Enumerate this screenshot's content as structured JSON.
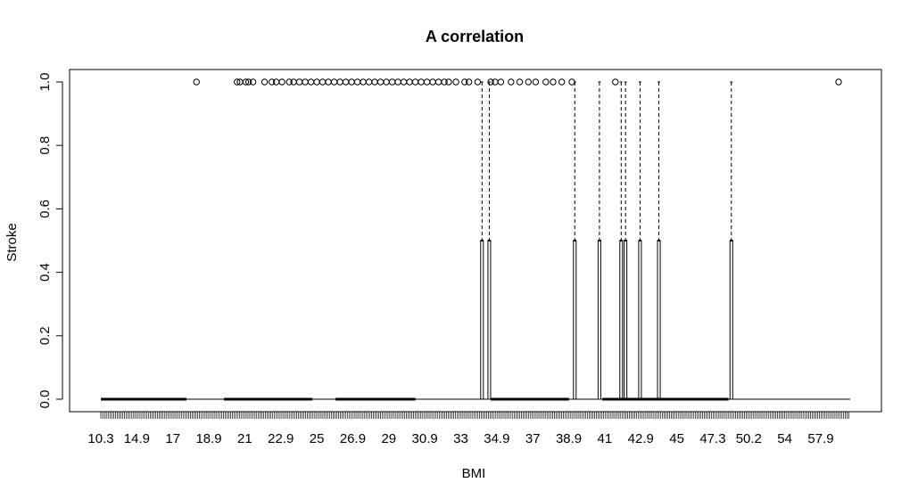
{
  "chart_data": {
    "type": "boxplot",
    "title": "A correlation",
    "xlabel": "BMI",
    "ylabel": "Stroke",
    "ylim": [
      0,
      1
    ],
    "y_ticks": [
      "0.0",
      "0.2",
      "0.4",
      "0.6",
      "0.8",
      "1.0"
    ],
    "x_tick_labels": [
      "10.3",
      "14.9",
      "17",
      "18.9",
      "21",
      "22.9",
      "25",
      "26.9",
      "29",
      "30.9",
      "33",
      "34.9",
      "37",
      "38.9",
      "41",
      "42.9",
      "45",
      "47.3",
      "50.2",
      "54",
      "57.9"
    ],
    "x_range": [
      10.3,
      62
    ],
    "boxes_spanning_0_to_1": [
      36.6,
      37.1,
      43.0,
      44.7,
      46.2,
      46.5,
      47.5,
      48.8,
      53.8
    ],
    "outliers_at_1": [
      16.9,
      19.7,
      19.9,
      20.3,
      20.5,
      20.8,
      21.6,
      22.1,
      22.4,
      22.8,
      23.3,
      23.6,
      24.0,
      24.4,
      24.8,
      25.2,
      25.6,
      26.0,
      26.4,
      26.8,
      27.2,
      27.6,
      28.0,
      28.4,
      28.8,
      29.2,
      29.6,
      30.0,
      30.4,
      30.8,
      31.2,
      31.6,
      32.0,
      32.4,
      32.8,
      33.2,
      33.6,
      34.0,
      34.3,
      34.8,
      35.4,
      35.7,
      36.3,
      37.2,
      37.5,
      37.9,
      38.6,
      39.2,
      39.8,
      40.3,
      41.0,
      41.5,
      42.1,
      42.8,
      45.8,
      61.2
    ]
  }
}
